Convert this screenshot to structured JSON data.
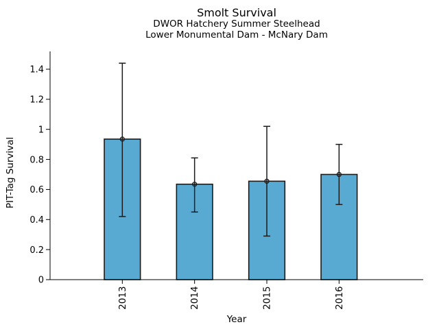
{
  "figure": {
    "title": "Smolt Survival",
    "subtitle_line1": "DWOR Hatchery Summer Steelhead",
    "subtitle_line2": "Lower Monumental Dam - McNary Dam"
  },
  "axes": {
    "xlabel": "Year",
    "ylabel": "PIT-Tag Survival",
    "y_tick_labels": [
      "0",
      "0.2",
      "0.4",
      "0.6",
      "0.8",
      "1",
      "1.2",
      "1.4"
    ],
    "y_tick_values": [
      0,
      0.2,
      0.4,
      0.6,
      0.8,
      1.0,
      1.2,
      1.4
    ],
    "x_tick_labels": [
      "2013",
      "2014",
      "2015",
      "2016"
    ]
  },
  "chart_data": {
    "type": "bar",
    "title": "Smolt Survival",
    "subtitle": [
      "DWOR Hatchery Summer Steelhead",
      "Lower Monumental Dam - McNary Dam"
    ],
    "categories": [
      "2013",
      "2014",
      "2015",
      "2016"
    ],
    "series": [
      {
        "name": "PIT-Tag Survival",
        "values": [
          0.935,
          0.635,
          0.655,
          0.7
        ],
        "error_low": [
          0.42,
          0.45,
          0.29,
          0.5
        ],
        "error_high": [
          1.44,
          0.81,
          1.02,
          0.9
        ]
      }
    ],
    "xlabel": "Year",
    "ylabel": "PIT-Tag Survival",
    "ylim": [
      0,
      1.52
    ],
    "y_tick_step": 0.2,
    "grid": false,
    "legend": false,
    "marker": "open-circle",
    "colors": {
      "bar_fill": "#58aad2",
      "bar_edge": "#1a1a1a",
      "error_bar": "#1a1a1a",
      "marker_edge": "#1a1a1a",
      "axis": "#000000",
      "text": "#000000",
      "background": "#ffffff"
    }
  }
}
